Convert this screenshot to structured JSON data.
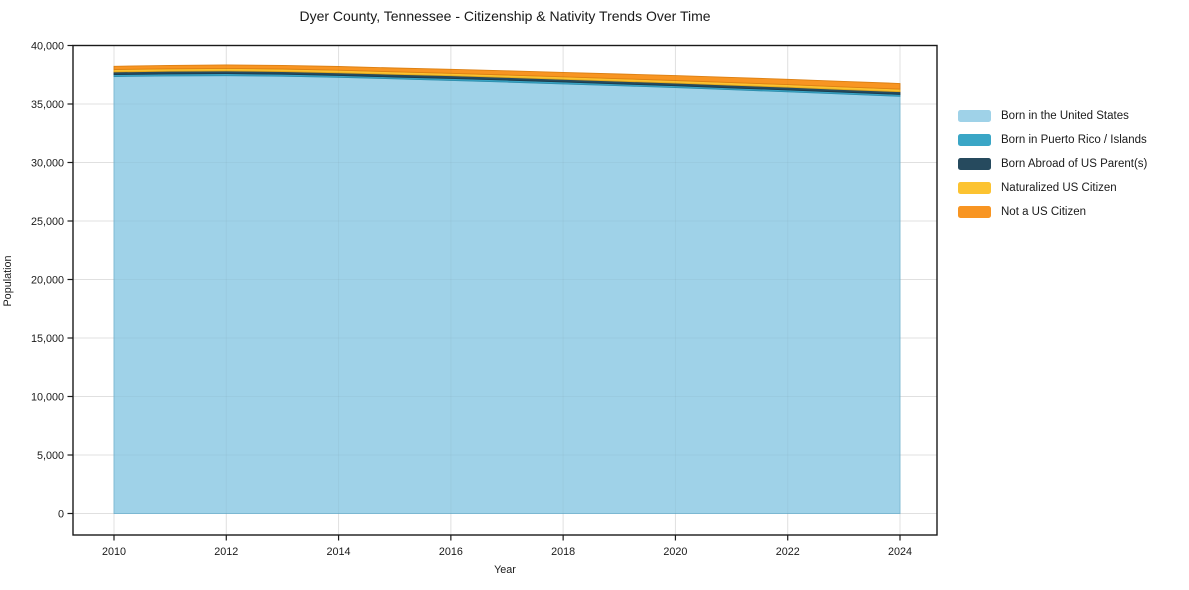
{
  "chart_data": {
    "type": "area",
    "stacked": true,
    "title": "Dyer County, Tennessee - Citizenship & Nativity Trends Over Time",
    "xlabel": "Year",
    "ylabel": "Population",
    "x": [
      2010,
      2011,
      2012,
      2013,
      2014,
      2015,
      2016,
      2017,
      2018,
      2019,
      2020,
      2021,
      2022,
      2023,
      2024
    ],
    "series": [
      {
        "name": "Born in the United States",
        "color": "#9fd2e8",
        "edge": "#7fbeda",
        "values": [
          37350,
          37400,
          37420,
          37380,
          37280,
          37150,
          37020,
          36870,
          36720,
          36560,
          36400,
          36220,
          36040,
          35850,
          35660
        ]
      },
      {
        "name": "Born in Puerto Rico / Islands",
        "color": "#3aa6c6",
        "edge": "#2e8fae",
        "values": [
          165,
          170,
          175,
          170,
          165,
          160,
          165,
          170,
          165,
          160,
          165,
          160,
          165,
          160,
          160
        ]
      },
      {
        "name": "Born Abroad of US Parent(s)",
        "color": "#264a5e",
        "edge": "#1d3a4a",
        "values": [
          225,
          230,
          235,
          230,
          225,
          230,
          235,
          230,
          225,
          230,
          225,
          230,
          235,
          230,
          230
        ]
      },
      {
        "name": "Naturalized US Citizen",
        "color": "#fcc331",
        "edge": "#e3a91e",
        "values": [
          205,
          210,
          215,
          210,
          215,
          210,
          205,
          210,
          215,
          210,
          215,
          220,
          215,
          220,
          220
        ]
      },
      {
        "name": "Not a US Citizen",
        "color": "#f89522",
        "edge": "#dd8013",
        "values": [
          275,
          290,
          300,
          310,
          320,
          330,
          345,
          360,
          380,
          400,
          420,
          440,
          455,
          470,
          480
        ]
      }
    ],
    "ylim": [
      0,
      40000
    ],
    "yticks": [
      0,
      5000,
      10000,
      15000,
      20000,
      25000,
      30000,
      35000,
      40000
    ],
    "ytick_labels": [
      "0",
      "5,000",
      "10,000",
      "15,000",
      "20,000",
      "25,000",
      "30,000",
      "35,000",
      "40,000"
    ],
    "xticks": [
      2010,
      2012,
      2014,
      2016,
      2018,
      2020,
      2022,
      2024
    ],
    "xtick_labels": [
      "2010",
      "2012",
      "2014",
      "2016",
      "2018",
      "2020",
      "2022",
      "2024"
    ],
    "grid": true,
    "legend_position": "right-outside",
    "colors": {
      "background": "#ffffff",
      "gridline": "#e8e8e8",
      "spine": "#1a1a1a",
      "text": "#1a1a1a"
    }
  }
}
